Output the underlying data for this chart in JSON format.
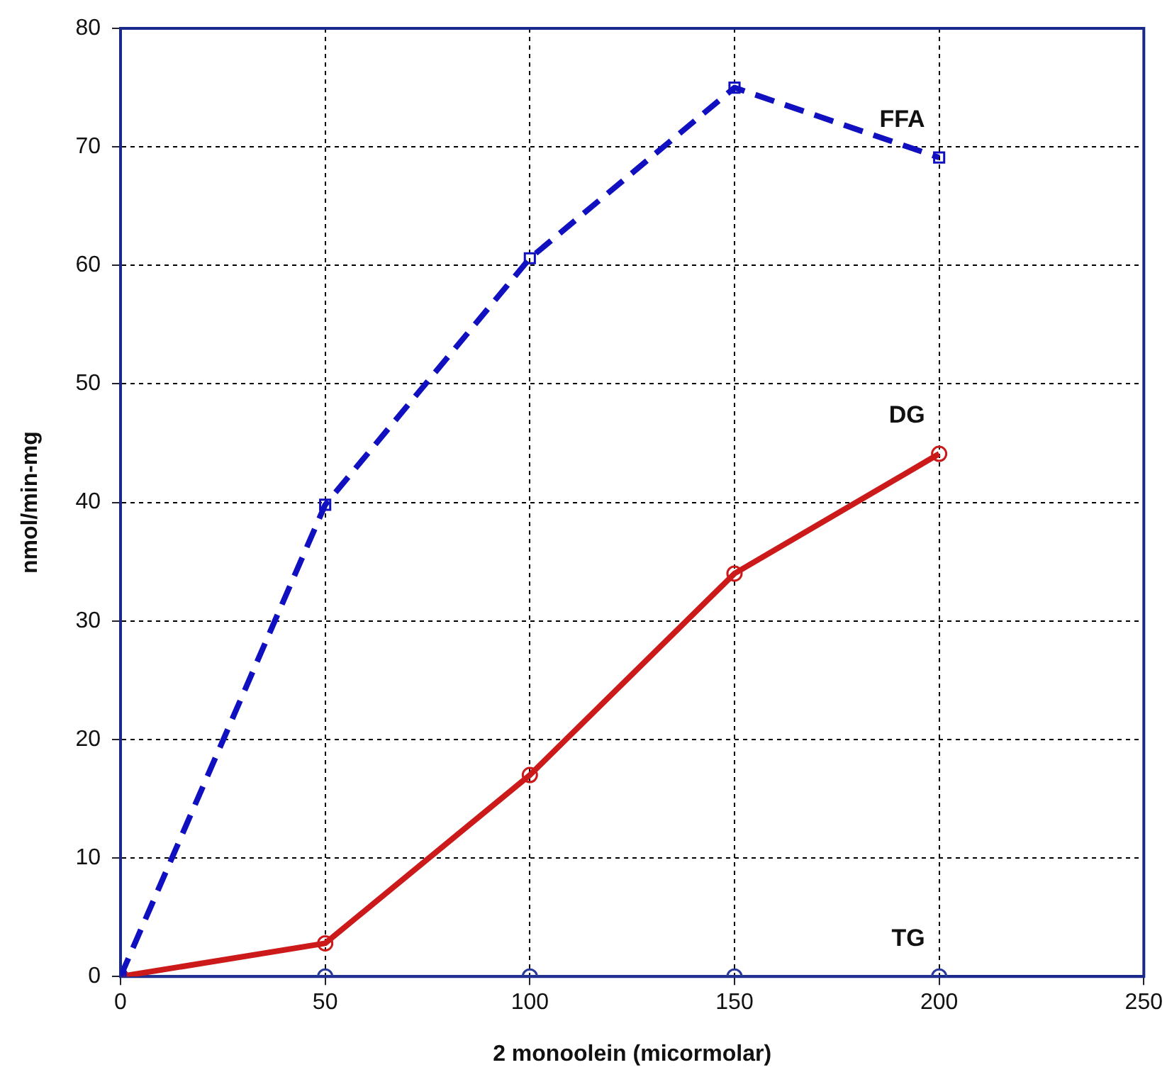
{
  "chart_data": {
    "type": "line",
    "xlabel": "2 monoolein (micormolar)",
    "ylabel": "nmol/min-mg",
    "xlim": [
      0,
      250
    ],
    "xticks": [
      0,
      50,
      100,
      150,
      200,
      250
    ],
    "ylim": [
      0,
      80
    ],
    "yticks": [
      0,
      10,
      20,
      30,
      40,
      50,
      60,
      70,
      80
    ],
    "grid": true,
    "series": [
      {
        "name": "FFA",
        "color": "#1010c0",
        "x": [
          0,
          50,
          100,
          150,
          200
        ],
        "values": [
          0,
          39.8,
          60.6,
          75,
          69.1
        ],
        "marker": "square",
        "line_style": "dashed"
      },
      {
        "name": "DG",
        "color": "#cc1a1a",
        "x": [
          0,
          50,
          100,
          150,
          200
        ],
        "values": [
          0,
          2.8,
          17,
          34,
          44.1
        ],
        "marker": "circle",
        "line_style": "solid"
      },
      {
        "name": "TG",
        "color": "#2a3a9a",
        "x": [
          0,
          50,
          100,
          150,
          200
        ],
        "values": [
          0,
          0,
          0,
          0,
          0
        ],
        "marker": "circle",
        "line_style": "solid"
      }
    ]
  }
}
